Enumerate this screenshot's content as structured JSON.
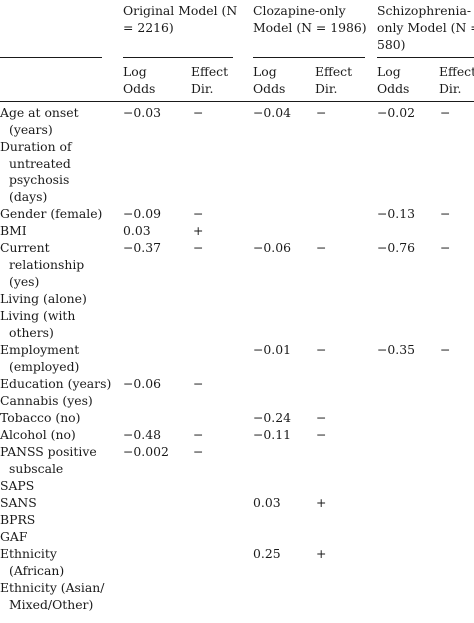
{
  "groups": [
    {
      "line1": "Original Model (N",
      "line2": "= 2216)"
    },
    {
      "line1": "Clozapine-only",
      "line2": "Model (N = 1986)"
    },
    {
      "line1": "Schizophrenia-",
      "line2": "only Model (N =",
      "line3": "580)"
    }
  ],
  "subheaders": {
    "log_line1": "Log",
    "log_line2": "Odds",
    "dir_line1": "Effect",
    "dir_line2": "Dir."
  },
  "rows": [
    {
      "label": [
        "Age at onset",
        "(years)"
      ],
      "o_lo": "−0.03",
      "o_dir": "−",
      "c_lo": "−0.04",
      "c_dir": "−",
      "s_lo": "−0.02",
      "s_dir": "−"
    },
    {
      "label": [
        "Duration of",
        "untreated",
        "psychosis",
        "(days)"
      ],
      "o_lo": "",
      "o_dir": "",
      "c_lo": "",
      "c_dir": "",
      "s_lo": "",
      "s_dir": ""
    },
    {
      "label": [
        "Gender (female)"
      ],
      "o_lo": "−0.09",
      "o_dir": "−",
      "c_lo": "",
      "c_dir": "",
      "s_lo": "−0.13",
      "s_dir": "−"
    },
    {
      "label": [
        "BMI"
      ],
      "o_lo": "0.03",
      "o_dir": "+",
      "c_lo": "",
      "c_dir": "",
      "s_lo": "",
      "s_dir": ""
    },
    {
      "label": [
        "Current",
        "relationship",
        "(yes)"
      ],
      "o_lo": "−0.37",
      "o_dir": "−",
      "c_lo": "−0.06",
      "c_dir": "−",
      "s_lo": "−0.76",
      "s_dir": "−"
    },
    {
      "label": [
        "Living (alone)"
      ],
      "o_lo": "",
      "o_dir": "",
      "c_lo": "",
      "c_dir": "",
      "s_lo": "",
      "s_dir": ""
    },
    {
      "label": [
        "Living (with",
        "others)"
      ],
      "o_lo": "",
      "o_dir": "",
      "c_lo": "",
      "c_dir": "",
      "s_lo": "",
      "s_dir": ""
    },
    {
      "label": [
        "Employment",
        "(employed)"
      ],
      "o_lo": "",
      "o_dir": "",
      "c_lo": "−0.01",
      "c_dir": "−",
      "s_lo": "−0.35",
      "s_dir": "−"
    },
    {
      "label": [
        "Education (years)"
      ],
      "o_lo": "−0.06",
      "o_dir": "−",
      "c_lo": "",
      "c_dir": "",
      "s_lo": "",
      "s_dir": ""
    },
    {
      "label": [
        "Cannabis (yes)"
      ],
      "o_lo": "",
      "o_dir": "",
      "c_lo": "",
      "c_dir": "",
      "s_lo": "",
      "s_dir": ""
    },
    {
      "label": [
        "Tobacco (no)"
      ],
      "o_lo": "",
      "o_dir": "",
      "c_lo": "−0.24",
      "c_dir": "−",
      "s_lo": "",
      "s_dir": ""
    },
    {
      "label": [
        "Alcohol (no)"
      ],
      "o_lo": "−0.48",
      "o_dir": "−",
      "c_lo": "−0.11",
      "c_dir": "−",
      "s_lo": "",
      "s_dir": ""
    },
    {
      "label": [
        "PANSS positive",
        "subscale"
      ],
      "o_lo": "−0.002",
      "o_dir": "−",
      "c_lo": "",
      "c_dir": "",
      "s_lo": "",
      "s_dir": ""
    },
    {
      "label": [
        "SAPS"
      ],
      "o_lo": "",
      "o_dir": "",
      "c_lo": "",
      "c_dir": "",
      "s_lo": "",
      "s_dir": ""
    },
    {
      "label": [
        "SANS"
      ],
      "o_lo": "",
      "o_dir": "",
      "c_lo": "0.03",
      "c_dir": "+",
      "s_lo": "",
      "s_dir": ""
    },
    {
      "label": [
        "BPRS"
      ],
      "o_lo": "",
      "o_dir": "",
      "c_lo": "",
      "c_dir": "",
      "s_lo": "",
      "s_dir": ""
    },
    {
      "label": [
        "GAF"
      ],
      "o_lo": "",
      "o_dir": "",
      "c_lo": "",
      "c_dir": "",
      "s_lo": "",
      "s_dir": ""
    },
    {
      "label": [
        "Ethnicity",
        "(African)"
      ],
      "o_lo": "",
      "o_dir": "",
      "c_lo": "0.25",
      "c_dir": "+",
      "s_lo": "",
      "s_dir": ""
    },
    {
      "label": [
        "Ethnicity (Asian/",
        "Mixed/Other)"
      ],
      "o_lo": "",
      "o_dir": "",
      "c_lo": "",
      "c_dir": "",
      "s_lo": "",
      "s_dir": ""
    }
  ]
}
